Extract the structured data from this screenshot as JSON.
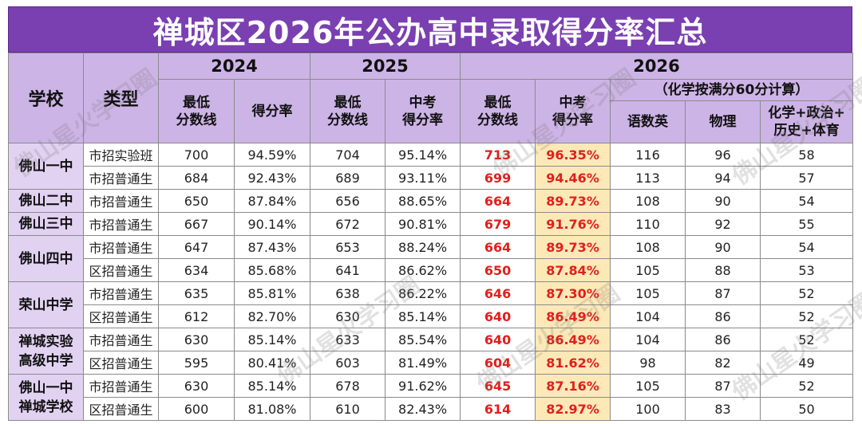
{
  "title": "禅城区2026年公办高中录取得分率汇总",
  "headers": {
    "school": "学校",
    "type": "类型",
    "y2024": "2024",
    "y2025": "2025",
    "y2026": "2026",
    "note2026": "（化学按满分60分计算）",
    "min_score_l1": "最低",
    "min_score_l2": "分数线",
    "rate": "得分率",
    "zk_l1": "中考",
    "zk_l2": "得分率",
    "yuwen": "语数英",
    "physics": "物理",
    "others_l1": "化学+政治+",
    "others_l2": "历史+体育"
  },
  "groups": [
    {
      "school_lines": [
        "佛山一中"
      ],
      "rows": [
        {
          "type": "市招实验班",
          "s24": "700",
          "r24": "94.59%",
          "s25": "704",
          "r25": "95.14%",
          "s26": "713",
          "r26": "96.35%",
          "ysy": "116",
          "wl": "96",
          "qt": "58"
        },
        {
          "type": "市招普通生",
          "s24": "684",
          "r24": "92.43%",
          "s25": "689",
          "r25": "93.11%",
          "s26": "699",
          "r26": "94.46%",
          "ysy": "113",
          "wl": "94",
          "qt": "57"
        }
      ]
    },
    {
      "school_lines": [
        "佛山二中"
      ],
      "rows": [
        {
          "type": "市招普通生",
          "s24": "650",
          "r24": "87.84%",
          "s25": "656",
          "r25": "88.65%",
          "s26": "664",
          "r26": "89.73%",
          "ysy": "108",
          "wl": "90",
          "qt": "54"
        }
      ]
    },
    {
      "school_lines": [
        "佛山三中"
      ],
      "rows": [
        {
          "type": "市招普通生",
          "s24": "667",
          "r24": "90.14%",
          "s25": "672",
          "r25": "90.81%",
          "s26": "679",
          "r26": "91.76%",
          "ysy": "110",
          "wl": "92",
          "qt": "55"
        }
      ]
    },
    {
      "school_lines": [
        "佛山四中"
      ],
      "rows": [
        {
          "type": "市招普通生",
          "s24": "647",
          "r24": "87.43%",
          "s25": "653",
          "r25": "88.24%",
          "s26": "664",
          "r26": "89.73%",
          "ysy": "108",
          "wl": "90",
          "qt": "54"
        },
        {
          "type": "区招普通生",
          "s24": "634",
          "r24": "85.68%",
          "s25": "641",
          "r25": "86.62%",
          "s26": "650",
          "r26": "87.84%",
          "ysy": "105",
          "wl": "88",
          "qt": "53"
        }
      ]
    },
    {
      "school_lines": [
        "荣山中学"
      ],
      "rows": [
        {
          "type": "市招普通生",
          "s24": "635",
          "r24": "85.81%",
          "s25": "638",
          "r25": "86.22%",
          "s26": "646",
          "r26": "87.30%",
          "ysy": "105",
          "wl": "87",
          "qt": "52"
        },
        {
          "type": "区招普通生",
          "s24": "612",
          "r24": "82.70%",
          "s25": "630",
          "r25": "85.14%",
          "s26": "640",
          "r26": "86.49%",
          "ysy": "104",
          "wl": "86",
          "qt": "52"
        }
      ]
    },
    {
      "school_lines": [
        "禅城实验",
        "高级中学"
      ],
      "rows": [
        {
          "type": "市招普通生",
          "s24": "630",
          "r24": "85.14%",
          "s25": "633",
          "r25": "85.54%",
          "s26": "640",
          "r26": "86.49%",
          "ysy": "104",
          "wl": "86",
          "qt": "52"
        },
        {
          "type": "区招普通生",
          "s24": "595",
          "r24": "80.41%",
          "s25": "603",
          "r25": "81.49%",
          "s26": "604",
          "r26": "81.62%",
          "ysy": "98",
          "wl": "82",
          "qt": "49"
        }
      ]
    },
    {
      "school_lines": [
        "佛山一中",
        "禅城学校"
      ],
      "rows": [
        {
          "type": "市招普通生",
          "s24": "630",
          "r24": "85.14%",
          "s25": "678",
          "r25": "91.62%",
          "s26": "645",
          "r26": "87.16%",
          "ysy": "105",
          "wl": "87",
          "qt": "52"
        },
        {
          "type": "区招普通生",
          "s24": "600",
          "r24": "81.08%",
          "s25": "610",
          "r25": "82.43%",
          "s26": "614",
          "r26": "82.97%",
          "ysy": "100",
          "wl": "83",
          "qt": "50"
        }
      ]
    }
  ],
  "watermark": "佛山星火学习圈",
  "colors": {
    "title_bg": "#7a3fb0",
    "header_bg": "#cdb4e6",
    "school_bg": "#e2d2f2",
    "highlight_bg": "#fde9b8",
    "red_text": "#e0201c"
  }
}
